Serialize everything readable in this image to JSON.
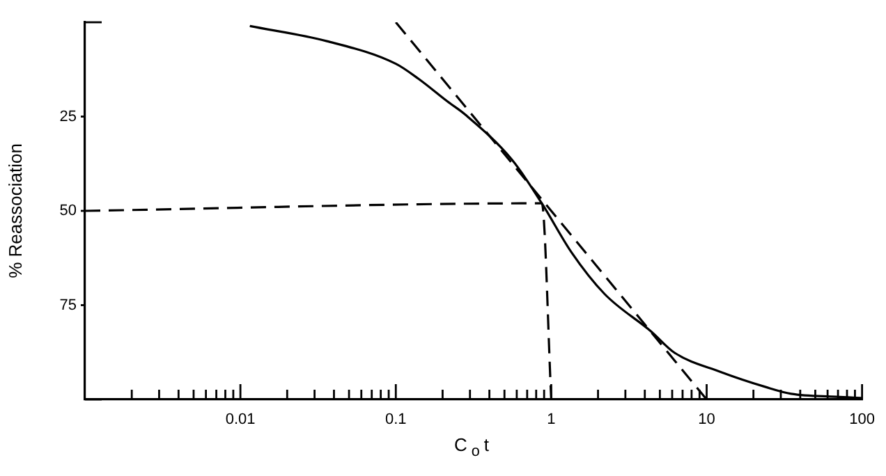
{
  "chart_data": {
    "type": "line",
    "xlabel": "C$_{o}$t",
    "ylabel": "% Reassociation",
    "log": "x",
    "xlim": [
      0.001,
      100
    ],
    "ylim": [
      100,
      0
    ],
    "xticks": [
      {
        "value": 0.002,
        "label": null
      },
      {
        "value": 0.003,
        "label": null
      },
      {
        "value": 0.004,
        "label": null
      },
      {
        "value": 0.005,
        "label": null
      },
      {
        "value": 0.006,
        "label": null
      },
      {
        "value": 0.007,
        "label": null
      },
      {
        "value": 0.008,
        "label": null
      },
      {
        "value": 0.009,
        "label": null
      },
      0.01,
      {
        "value": 0.02,
        "label": null
      },
      {
        "value": 0.03,
        "label": null
      },
      {
        "value": 0.04,
        "label": null
      },
      {
        "value": 0.05,
        "label": null
      },
      {
        "value": 0.06,
        "label": null
      },
      {
        "value": 0.07,
        "label": null
      },
      {
        "value": 0.08,
        "label": null
      },
      {
        "value": 0.09,
        "label": null
      },
      0.1,
      {
        "value": 0.2,
        "label": null
      },
      {
        "value": 0.3,
        "label": null
      },
      {
        "value": 0.4,
        "label": null
      },
      {
        "value": 0.5,
        "label": null
      },
      {
        "value": 0.6,
        "label": null
      },
      {
        "value": 0.7,
        "label": null
      },
      {
        "value": 0.8,
        "label": null
      },
      {
        "value": 0.9,
        "label": null
      },
      1,
      {
        "value": 2,
        "label": null
      },
      {
        "value": 3,
        "label": null
      },
      {
        "value": 4,
        "label": null
      },
      {
        "value": 5,
        "label": null
      },
      {
        "value": 6,
        "label": null
      },
      {
        "value": 7,
        "label": null
      },
      {
        "value": 8,
        "label": null
      },
      {
        "value": 9,
        "label": null
      },
      10,
      {
        "value": 20,
        "label": null
      },
      {
        "value": 30,
        "label": null
      },
      {
        "value": 40,
        "label": null
      },
      {
        "value": 50,
        "label": null
      },
      {
        "value": 60,
        "label": null
      },
      {
        "value": 70,
        "label": null
      },
      {
        "value": 80,
        "label": null
      },
      {
        "value": 90,
        "label": null
      },
      100
    ],
    "yticks": [
      {
        "value": 0,
        "label": null
      },
      25,
      50,
      75,
      {
        "value": 100,
        "label": null
      }
    ],
    "grid": false,
    "legend": false,
    "marker": "none",
    "series": [
      {
        "color": "#000000",
        "line_style": "solid",
        "x": [
          0.0115,
          0.036,
          0.1,
          0.14,
          0.215,
          0.28,
          0.56,
          0.87,
          1.35,
          2.2,
          4.4,
          6.2,
          12.3,
          24,
          35,
          68,
          100
        ],
        "values": [
          1,
          5,
          11,
          15,
          21,
          24.5,
          36.5,
          48,
          61,
          72,
          82,
          87.6,
          92.7,
          96.7,
          98.5,
          99.3,
          99.6
        ]
      },
      {
        "color": "#000000",
        "line_style": "dashed",
        "x": [
          0.1,
          10
        ],
        "values": [
          0,
          100
        ]
      },
      {
        "color": "#000000",
        "line_style": "dashed",
        "x": [
          0.001,
          0.87,
          1
        ],
        "values": [
          50,
          48,
          100
        ]
      }
    ]
  }
}
